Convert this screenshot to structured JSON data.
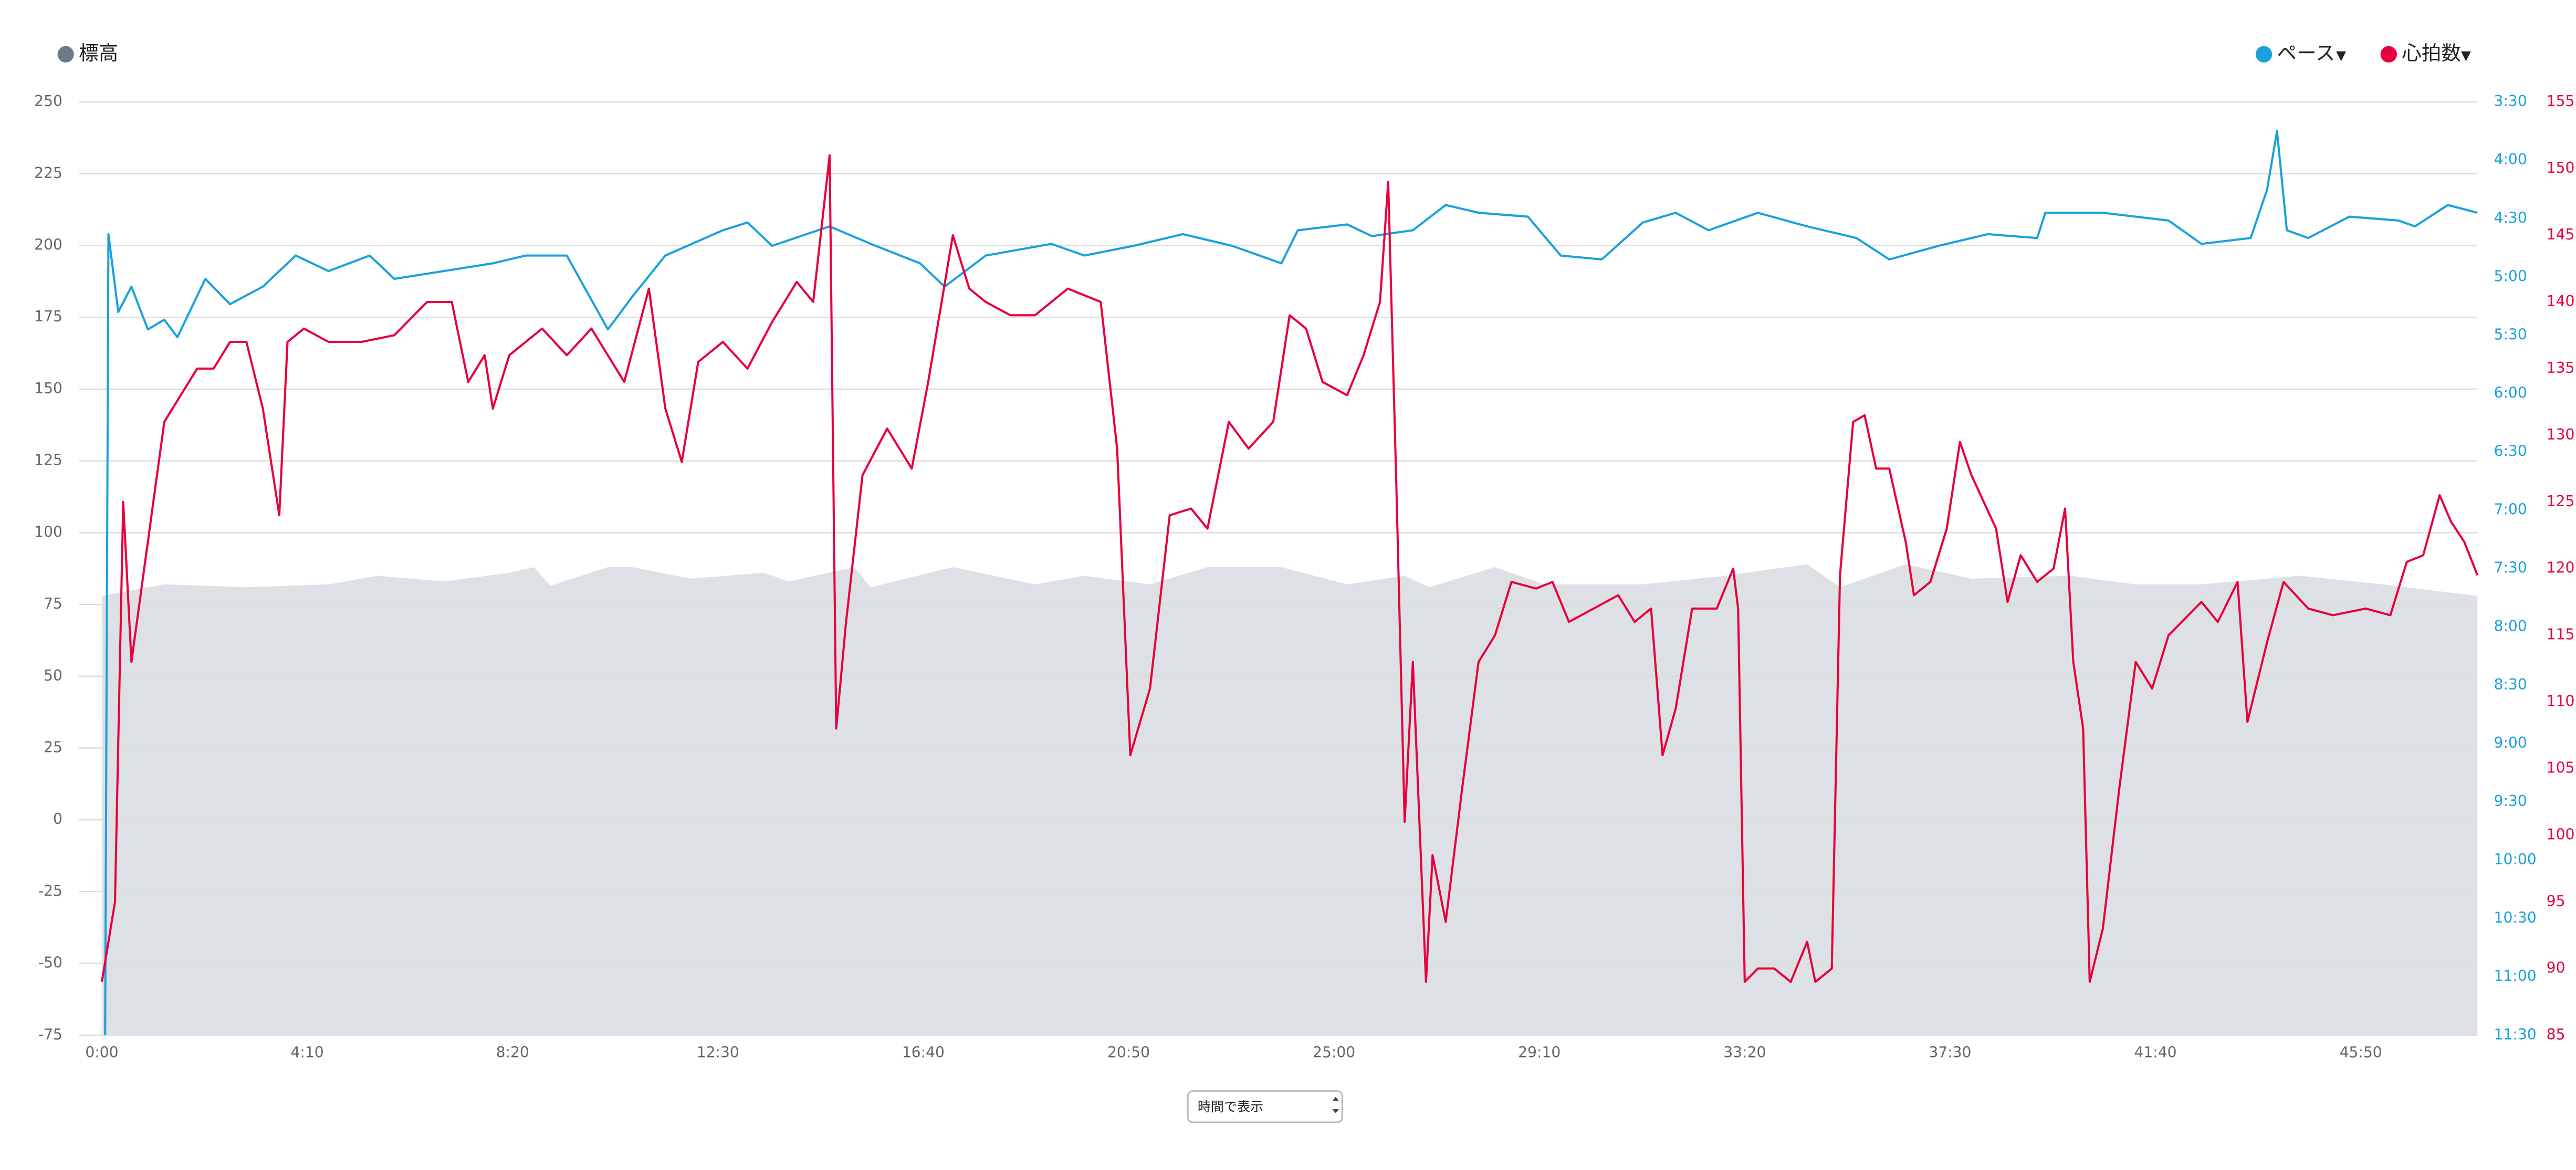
{
  "chart_data": {
    "type": "line",
    "xlim": [
      -28,
      2892
    ],
    "xticks": [
      {
        "value": 0,
        "label": "0:00"
      },
      {
        "value": 250,
        "label": "4:10"
      },
      {
        "value": 500,
        "label": "8:20"
      },
      {
        "value": 750,
        "label": "12:30"
      },
      {
        "value": 1000,
        "label": "16:40"
      },
      {
        "value": 1250,
        "label": "20:50"
      },
      {
        "value": 1500,
        "label": "25:00"
      },
      {
        "value": 1750,
        "label": "29:10"
      },
      {
        "value": 2000,
        "label": "33:20"
      },
      {
        "value": 2250,
        "label": "37:30"
      },
      {
        "value": 2500,
        "label": "41:40"
      },
      {
        "value": 2750,
        "label": "45:50"
      }
    ],
    "ylim": [
      -75,
      250
    ],
    "yticks": [
      -75,
      -50,
      -25,
      0,
      25,
      50,
      75,
      100,
      125,
      150,
      175,
      200,
      225,
      250
    ],
    "y2lim": [
      690,
      210
    ],
    "y2ticks": [
      {
        "value": 210,
        "label": "3:30"
      },
      {
        "value": 240,
        "label": "4:00"
      },
      {
        "value": 270,
        "label": "4:30"
      },
      {
        "value": 300,
        "label": "5:00"
      },
      {
        "value": 330,
        "label": "5:30"
      },
      {
        "value": 360,
        "label": "6:00"
      },
      {
        "value": 390,
        "label": "6:30"
      },
      {
        "value": 420,
        "label": "7:00"
      },
      {
        "value": 450,
        "label": "7:30"
      },
      {
        "value": 480,
        "label": "8:00"
      },
      {
        "value": 510,
        "label": "8:30"
      },
      {
        "value": 540,
        "label": "9:00"
      },
      {
        "value": 570,
        "label": "9:30"
      },
      {
        "value": 600,
        "label": "10:00"
      },
      {
        "value": 630,
        "label": "10:30"
      },
      {
        "value": 660,
        "label": "11:00"
      },
      {
        "value": 690,
        "label": "11:30"
      }
    ],
    "y3lim": [
      85,
      155
    ],
    "y3ticks": [
      85,
      90,
      95,
      100,
      105,
      110,
      115,
      120,
      125,
      130,
      135,
      140,
      145,
      150,
      155
    ],
    "grid": true,
    "legend_dropdown": "▾",
    "x_mode_select": "時間で表示",
    "series": [
      {
        "name": "標高",
        "color": "#6b7a8b",
        "fill": "#dde0e4",
        "axis": "y",
        "style": "area",
        "x": [
          0,
          76,
          176,
          276,
          336,
          376,
          416,
          496,
          526,
          546,
          616,
          646,
          716,
          806,
          836,
          916,
          936,
          1036,
          1136,
          1196,
          1276,
          1346,
          1436,
          1516,
          1586,
          1616,
          1696,
          1756,
          1876,
          1976,
          2076,
          2116,
          2196,
          2276,
          2396,
          2476,
          2556,
          2676,
          2776,
          2892
        ],
        "values": [
          78,
          82,
          81,
          82,
          85,
          84,
          83,
          86,
          88,
          81.5,
          88,
          88,
          84,
          86,
          83,
          88,
          81,
          88,
          82,
          85,
          82,
          88,
          88,
          82,
          85,
          81,
          88,
          82,
          82,
          85,
          89,
          81,
          89,
          84,
          85,
          82,
          82,
          85,
          82,
          78
        ]
      },
      {
        "name": "ペース",
        "color": "#1aa1dc",
        "axis": "y2",
        "style": "line",
        "x": [
          4,
          8,
          20,
          36,
          56,
          76,
          92,
          126,
          156,
          196,
          236,
          276,
          326,
          356,
          416,
          476,
          516,
          566,
          616,
          646,
          686,
          756,
          786,
          816,
          886,
          936,
          996,
          1026,
          1076,
          1156,
          1196,
          1256,
          1316,
          1376,
          1436,
          1456,
          1516,
          1546,
          1596,
          1636,
          1676,
          1736,
          1776,
          1826,
          1876,
          1916,
          1956,
          2016,
          2076,
          2136,
          2176,
          2236,
          2296,
          2356,
          2366,
          2436,
          2516,
          2556,
          2616,
          2636,
          2648,
          2660,
          2686,
          2736,
          2796,
          2816,
          2856,
          2892
        ],
        "values": [
          690,
          278,
          318,
          305,
          327,
          322,
          331,
          301,
          314,
          305,
          289,
          297,
          289,
          301,
          297,
          293,
          289,
          289,
          327,
          310,
          289,
          276,
          272,
          284,
          274,
          283,
          293,
          305,
          289,
          283,
          289,
          284,
          278,
          284,
          293,
          276,
          273,
          279,
          276,
          263,
          267,
          269,
          289,
          291,
          272,
          267,
          276,
          267,
          274,
          280,
          291,
          284,
          278,
          280,
          267,
          267,
          271,
          283,
          280,
          255,
          225,
          276,
          280,
          269,
          271,
          274,
          263,
          267
        ]
      },
      {
        "name": "心拍数",
        "color": "#e8003d",
        "axis": "y3",
        "style": "line",
        "x": [
          0,
          16,
          26,
          36,
          56,
          76,
          96,
          116,
          136,
          156,
          176,
          196,
          216,
          226,
          246,
          276,
          316,
          356,
          396,
          426,
          446,
          466,
          476,
          496,
          536,
          566,
          596,
          636,
          666,
          686,
          706,
          726,
          756,
          786,
          816,
          846,
          866,
          886,
          894,
          906,
          926,
          956,
          986,
          1006,
          1036,
          1056,
          1076,
          1106,
          1136,
          1176,
          1216,
          1236,
          1252,
          1276,
          1300,
          1326,
          1346,
          1372,
          1396,
          1426,
          1446,
          1466,
          1486,
          1516,
          1536,
          1556,
          1566,
          1576,
          1586,
          1596,
          1612,
          1620,
          1636,
          1656,
          1676,
          1696,
          1716,
          1746,
          1766,
          1786,
          1816,
          1846,
          1866,
          1886,
          1900,
          1916,
          1936,
          1966,
          1986,
          1992,
          2000,
          2016,
          2036,
          2056,
          2076,
          2086,
          2106,
          2116,
          2132,
          2146,
          2160,
          2176,
          2196,
          2206,
          2226,
          2246,
          2262,
          2276,
          2306,
          2320,
          2336,
          2356,
          2376,
          2390,
          2400,
          2412,
          2420,
          2436,
          2456,
          2476,
          2496,
          2516,
          2556,
          2576,
          2600,
          2612,
          2636,
          2656,
          2686,
          2716,
          2756,
          2786,
          2806,
          2826,
          2846,
          2860,
          2876,
          2892
        ],
        "values": [
          89,
          95,
          125,
          113,
          122,
          131,
          133,
          135,
          135,
          137,
          137,
          132,
          124,
          137,
          138,
          137,
          137,
          137.5,
          140,
          140,
          134,
          136,
          132,
          136,
          138,
          136,
          138,
          134,
          141,
          132,
          128,
          135.5,
          137,
          135,
          138.5,
          141.5,
          140,
          151,
          108,
          116,
          127,
          130.5,
          127.5,
          134,
          145,
          141,
          140,
          139,
          139,
          141,
          140,
          129,
          106,
          111,
          124,
          124.5,
          123,
          131,
          129,
          131,
          139,
          138,
          134,
          133,
          136,
          140,
          149,
          126,
          101,
          113,
          89,
          98.5,
          93.5,
          103.5,
          113,
          115,
          119,
          118.5,
          119,
          116,
          117,
          118,
          116,
          117,
          106,
          109.5,
          117,
          117,
          120,
          117,
          89,
          90,
          90,
          89,
          92,
          89,
          90,
          119.5,
          131,
          131.5,
          127.5,
          127.5,
          122,
          118,
          119,
          123,
          129.5,
          127,
          123,
          117.5,
          121,
          119,
          120,
          124.5,
          113,
          108,
          89,
          93,
          103.5,
          113,
          111,
          115,
          117.5,
          116,
          119,
          108.5,
          114.5,
          119,
          117,
          116.5,
          117,
          116.5,
          120.5,
          121,
          125.5,
          123.5,
          122,
          119.5
        ]
      }
    ]
  }
}
